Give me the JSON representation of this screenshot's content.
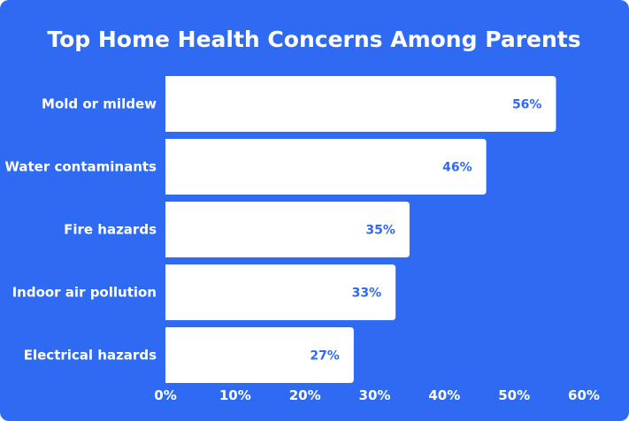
{
  "chart_data": {
    "type": "bar",
    "orientation": "horizontal",
    "title": "Top Home Health Concerns Among Parents",
    "categories": [
      "Mold or mildew",
      "Water contaminants",
      "Fire hazards",
      "Indoor air pollution",
      "Electrical hazards"
    ],
    "values": [
      56,
      46,
      35,
      33,
      27
    ],
    "value_labels": [
      "56%",
      "46%",
      "35%",
      "33%",
      "27%"
    ],
    "xlim": [
      0,
      60
    ],
    "x_ticks": [
      0,
      10,
      20,
      30,
      40,
      50,
      60
    ],
    "x_tick_labels": [
      "0%",
      "10%",
      "20%",
      "30%",
      "40%",
      "50%",
      "60%"
    ],
    "xlabel": "",
    "ylabel": "",
    "grid": false,
    "legend": "none"
  },
  "colors": {
    "background": "#2f6bf2",
    "bar": "#ffffff",
    "text": "#ffffff",
    "value_text": "#2f6bf2"
  }
}
